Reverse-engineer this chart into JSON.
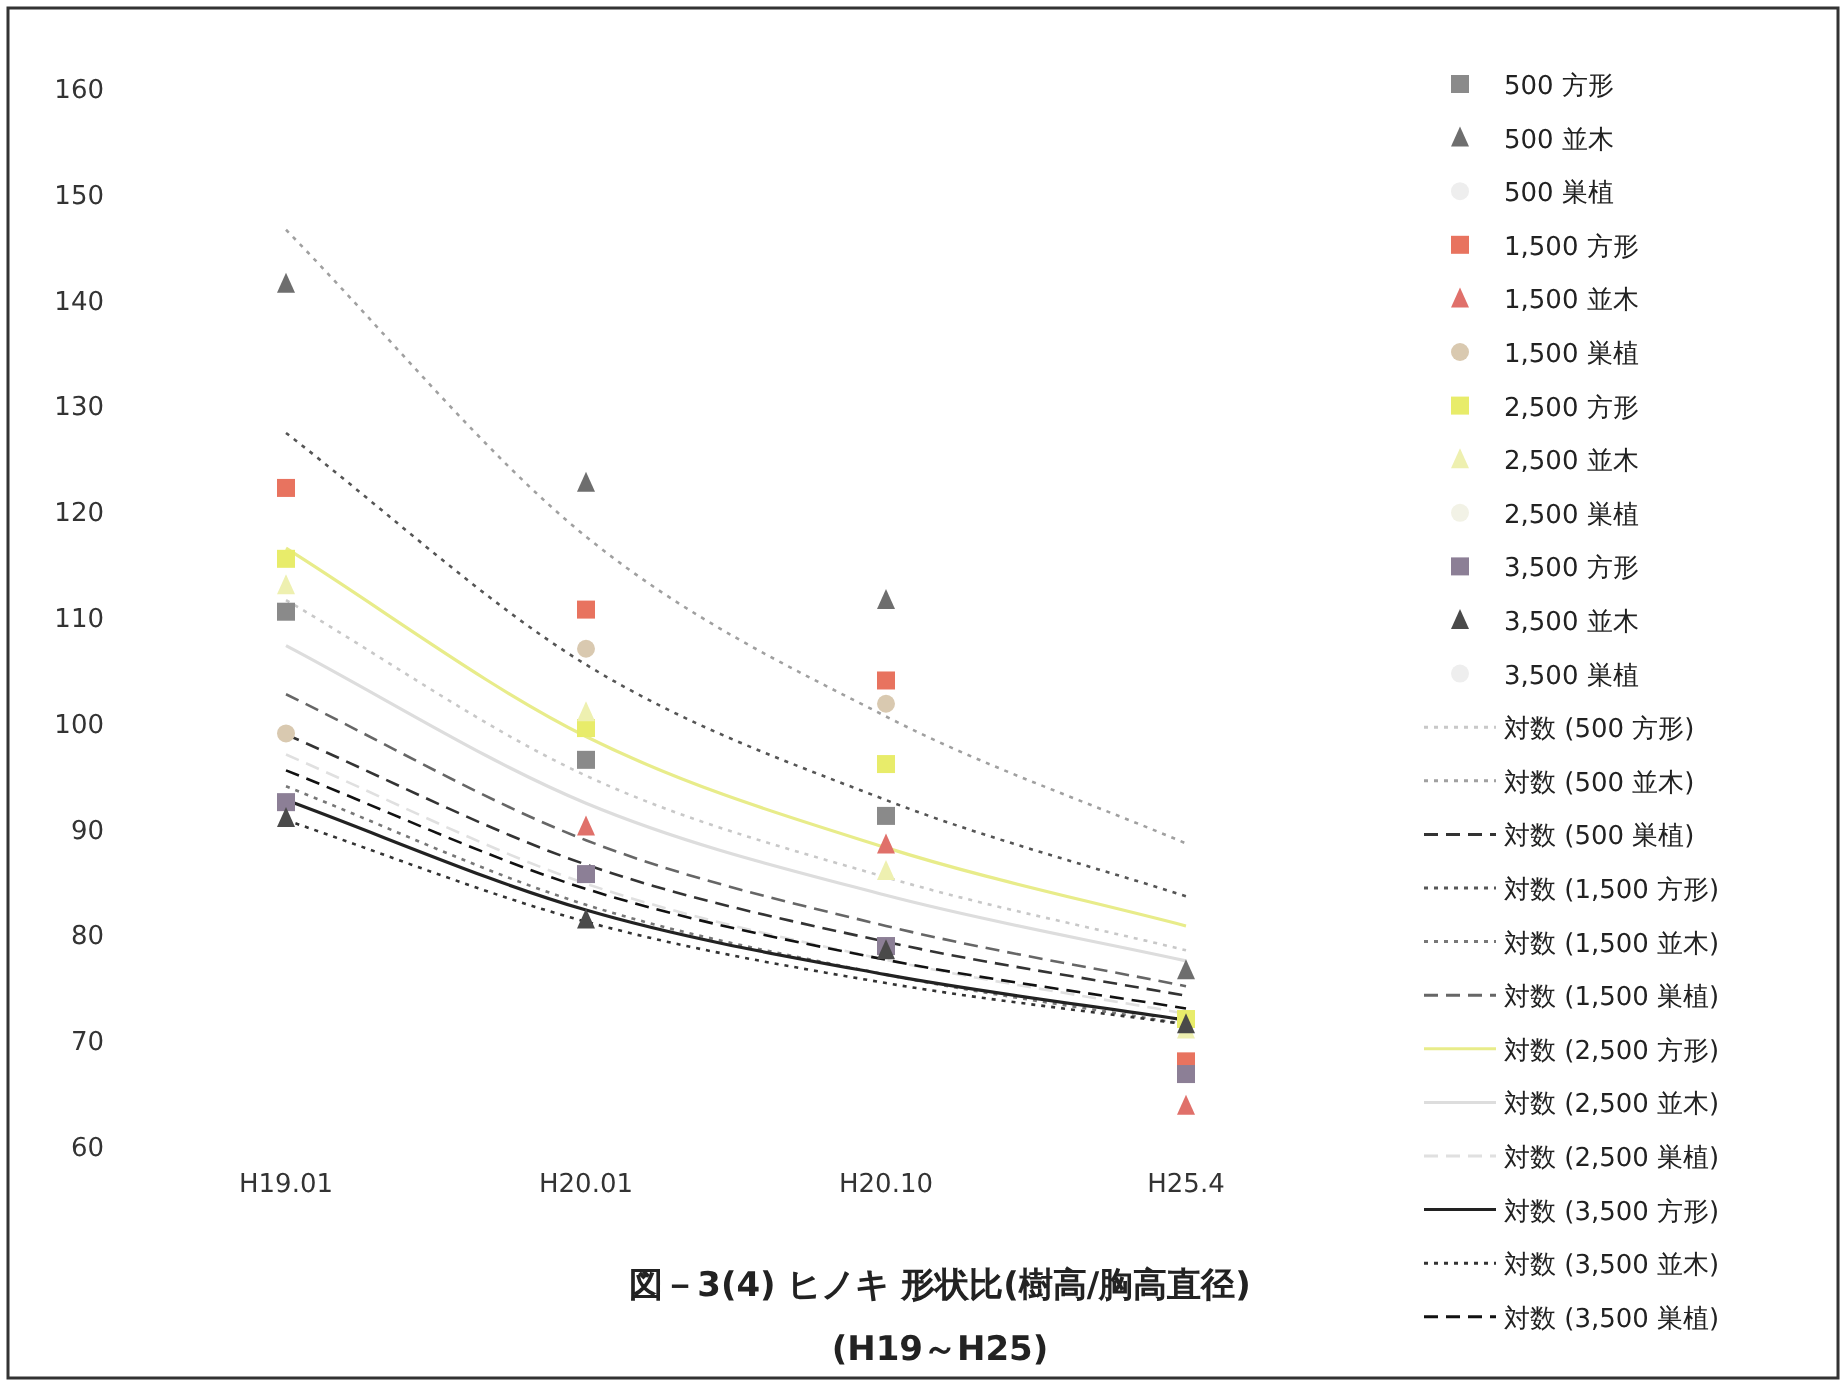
{
  "chart_data": {
    "type": "scatter",
    "title": "図－3(4) ヒノキ 形状比(樹高/胸高直径)",
    "subtitle": "(H19～H25)",
    "categories": [
      "H19.01",
      "H20.01",
      "H20.10",
      "H25.4"
    ],
    "ylim": [
      60,
      160
    ],
    "yticks": [
      60,
      70,
      80,
      90,
      100,
      110,
      120,
      130,
      140,
      150,
      160
    ],
    "grid": false,
    "legend": "right",
    "series": [
      {
        "name": "500 方形",
        "type": "scatter",
        "marker": "square",
        "color": "#8a8a8a",
        "values": [
          110.5,
          96.5,
          91.2,
          null
        ]
      },
      {
        "name": "500 並木",
        "type": "scatter",
        "marker": "triangle",
        "color": "#6e6e6e",
        "values": [
          141.5,
          122.7,
          111.6,
          76.6
        ]
      },
      {
        "name": "500 巣植",
        "type": "scatter",
        "marker": "circle",
        "color": "#eeeeee",
        "values": [
          null,
          null,
          null,
          null
        ]
      },
      {
        "name": "1,500 方形",
        "type": "scatter",
        "marker": "square",
        "color": "#e8735f",
        "values": [
          122.2,
          110.7,
          104,
          68
        ]
      },
      {
        "name": "1,500 並木",
        "type": "scatter",
        "marker": "triangle",
        "color": "#e0706a",
        "values": [
          null,
          90.2,
          88.5,
          63.8
        ]
      },
      {
        "name": "1,500 巣植",
        "type": "scatter",
        "marker": "circle",
        "color": "#d9c9b0",
        "values": [
          99,
          107,
          101.8,
          null
        ]
      },
      {
        "name": "2,500 方形",
        "type": "scatter",
        "marker": "square",
        "color": "#e8ec6a",
        "values": [
          115.5,
          99.5,
          96.1,
          72
        ]
      },
      {
        "name": "2,500 並木",
        "type": "scatter",
        "marker": "triangle",
        "color": "#eef0b0",
        "values": [
          113,
          101,
          86,
          71
        ]
      },
      {
        "name": "2,500 巣植",
        "type": "scatter",
        "marker": "circle",
        "color": "#f2f2e6",
        "values": [
          null,
          null,
          null,
          null
        ]
      },
      {
        "name": "3,500 方形",
        "type": "scatter",
        "marker": "square",
        "color": "#8c7f96",
        "values": [
          92.5,
          85.7,
          78.9,
          66.8
        ]
      },
      {
        "name": "3,500 並木",
        "type": "scatter",
        "marker": "triangle",
        "color": "#4a4a4a",
        "values": [
          91,
          81.4,
          78.5,
          71.5
        ]
      },
      {
        "name": "3,500 巣植",
        "type": "scatter",
        "marker": "circle",
        "color": "#eeeeee",
        "values": [
          null,
          null,
          null,
          null
        ]
      },
      {
        "name": "対数 (500 方形)",
        "type": "line",
        "line_style": "dotted",
        "color": "#c8c8c8",
        "values": [
          111.6,
          95,
          85.4,
          78.5
        ]
      },
      {
        "name": "対数 (500 並木)",
        "type": "line",
        "line_style": "dotted",
        "color": "#a0a0a0",
        "values": [
          146.6,
          117.6,
          100.6,
          88.6
        ]
      },
      {
        "name": "対数 (500 巣植)",
        "type": "line",
        "line_style": "dashed",
        "color": "#333333",
        "values": [
          98.9,
          86.6,
          79.3,
          74.2
        ]
      },
      {
        "name": "対数 (1,500 方形)",
        "type": "line",
        "line_style": "dotted",
        "color": "#555555",
        "values": [
          127.4,
          105.5,
          92.7,
          83.6
        ]
      },
      {
        "name": "対数 (1,500 並木)",
        "type": "line",
        "line_style": "dotted",
        "color": "#777777",
        "values": [
          94,
          82.8,
          76.2,
          71.5
        ]
      },
      {
        "name": "対数 (1,500 巣植)",
        "type": "line",
        "line_style": "dashed",
        "color": "#666666",
        "values": [
          102.7,
          88.9,
          80.8,
          75.1
        ]
      },
      {
        "name": "対数 (2,500 方形)",
        "type": "line",
        "line_style": "solid",
        "color": "#e8ec8a",
        "values": [
          116.5,
          98.7,
          88.2,
          80.8
        ]
      },
      {
        "name": "対数 (2,500 並木)",
        "type": "line",
        "line_style": "solid",
        "color": "#dddddd",
        "values": [
          107.3,
          92.4,
          83.7,
          77.5
        ]
      },
      {
        "name": "対数 (2,500 巣植)",
        "type": "line",
        "line_style": "dashed",
        "color": "#e0e0e0",
        "values": [
          97,
          84.8,
          77.6,
          72.5
        ]
      },
      {
        "name": "対数 (3,500 方形)",
        "type": "line",
        "line_style": "solid",
        "color": "#222222",
        "values": [
          92.7,
          82.3,
          76.2,
          71.9
        ]
      },
      {
        "name": "対数 (3,500 並木)",
        "type": "line",
        "line_style": "dotted",
        "color": "#333333",
        "values": [
          90.8,
          81.2,
          75.4,
          71.5
        ]
      },
      {
        "name": "対数 (3,500 巣植)",
        "type": "line",
        "line_style": "dashed",
        "color": "#111111",
        "values": [
          95.5,
          84.3,
          77.6,
          73
        ]
      }
    ]
  }
}
